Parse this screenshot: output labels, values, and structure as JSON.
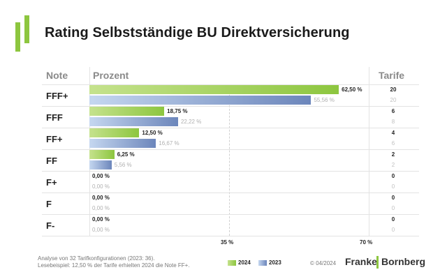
{
  "title": "Rating Selbstständige BU Direktversicherung",
  "headers": {
    "note": "Note",
    "prozent": "Prozent",
    "tarife": "Tarife"
  },
  "chart_data": {
    "type": "bar",
    "orientation": "horizontal",
    "title": "Rating Selbstständige BU Direktversicherung",
    "categories": [
      "FFF+",
      "FFF",
      "FF+",
      "FF",
      "F+",
      "F",
      "F-"
    ],
    "xlim": [
      0,
      70
    ],
    "x_ticks": [
      "35 %",
      "70 %"
    ],
    "series": [
      {
        "name": "2024",
        "values": [
          62.5,
          18.75,
          12.5,
          6.25,
          0,
          0,
          0
        ],
        "labels": [
          "62,50 %",
          "18,75 %",
          "12,50 %",
          "6,25 %",
          "0,00 %",
          "0,00 %",
          "0,00 %"
        ],
        "tarife": [
          "20",
          "6",
          "4",
          "2",
          "0",
          "0",
          "0"
        ],
        "color": "#8dc63f"
      },
      {
        "name": "2023",
        "values": [
          55.56,
          22.22,
          16.67,
          5.56,
          0,
          0,
          0
        ],
        "labels": [
          "55,56 %",
          "22,22 %",
          "16,67 %",
          "5,56 %",
          "0,00 %",
          "0,00 %",
          "0,00 %"
        ],
        "tarife": [
          "20",
          "8",
          "6",
          "2",
          "0",
          "0",
          "0"
        ],
        "color": "#6c86bb"
      }
    ],
    "legend": "bottom"
  },
  "footnote": {
    "line1": "Analyse von 32 Tarifkonfigurationen (2023: 36).",
    "line2": "Lesebeispiel: 12,50 % der Tarife erhielten 2024 die Note FF+."
  },
  "copyright": "© 04/2024",
  "brand": {
    "left": "Franke",
    "right": "Bornberg"
  }
}
